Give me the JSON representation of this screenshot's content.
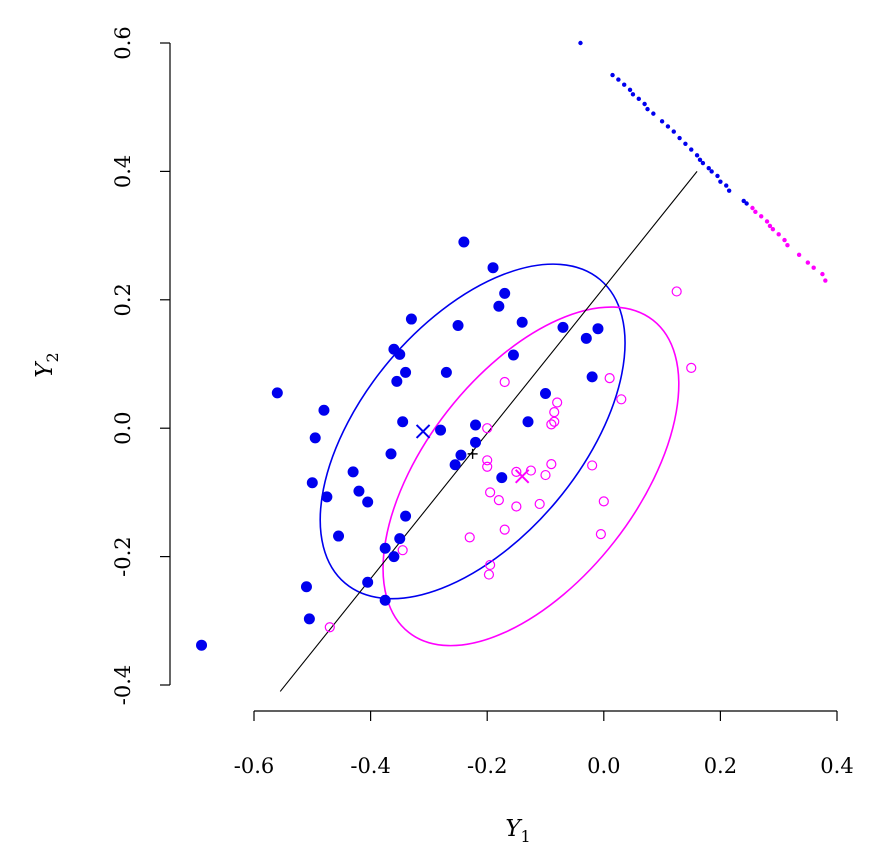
{
  "chart_data": {
    "type": "scatter",
    "xlabel": "Y",
    "xlabel_sub": "1",
    "ylabel": "Y",
    "ylabel_sub": "2",
    "xlim": [
      -0.77,
      0.45
    ],
    "ylim": [
      -0.45,
      0.62
    ],
    "x_ticks": [
      {
        "value": -0.6,
        "label": "-0.6"
      },
      {
        "value": -0.4,
        "label": "-0.4"
      },
      {
        "value": -0.2,
        "label": "-0.2"
      },
      {
        "value": 0.0,
        "label": "0.0"
      },
      {
        "value": 0.2,
        "label": "0.2"
      },
      {
        "value": 0.4,
        "label": "0.4"
      }
    ],
    "y_ticks": [
      {
        "value": -0.4,
        "label": "-0.4"
      },
      {
        "value": -0.2,
        "label": "-0.2"
      },
      {
        "value": 0.0,
        "label": "0.0"
      },
      {
        "value": 0.2,
        "label": "0.2"
      },
      {
        "value": 0.4,
        "label": "0.4"
      },
      {
        "value": 0.6,
        "label": "0.6"
      }
    ],
    "colors": {
      "group1": "#0000ee",
      "group2": "#ff00ff",
      "line": "#000000"
    },
    "series": [
      {
        "marker": "filled-circle",
        "color": "#0000ee",
        "points": [
          [
            -0.24,
            0.29
          ],
          [
            -0.19,
            0.25
          ],
          [
            -0.17,
            0.21
          ],
          [
            -0.18,
            0.19
          ],
          [
            -0.33,
            0.17
          ],
          [
            -0.25,
            0.16
          ],
          [
            -0.14,
            0.165
          ],
          [
            -0.07,
            0.157
          ],
          [
            -0.01,
            0.155
          ],
          [
            -0.03,
            0.14
          ],
          [
            -0.36,
            0.123
          ],
          [
            -0.35,
            0.115
          ],
          [
            -0.155,
            0.114
          ],
          [
            -0.34,
            0.087
          ],
          [
            -0.27,
            0.087
          ],
          [
            -0.355,
            0.073
          ],
          [
            -0.02,
            0.08
          ],
          [
            -0.56,
            0.055
          ],
          [
            -0.1,
            0.054
          ],
          [
            -0.48,
            0.028
          ],
          [
            -0.13,
            0.01
          ],
          [
            -0.345,
            0.01
          ],
          [
            -0.22,
            0.005
          ],
          [
            -0.28,
            -0.003
          ],
          [
            -0.495,
            -0.015
          ],
          [
            -0.22,
            -0.022
          ],
          [
            -0.365,
            -0.04
          ],
          [
            -0.245,
            -0.042
          ],
          [
            -0.255,
            -0.057
          ],
          [
            -0.43,
            -0.068
          ],
          [
            -0.175,
            -0.077
          ],
          [
            -0.5,
            -0.085
          ],
          [
            -0.42,
            -0.098
          ],
          [
            -0.475,
            -0.107
          ],
          [
            -0.405,
            -0.115
          ],
          [
            -0.34,
            -0.137
          ],
          [
            -0.455,
            -0.168
          ],
          [
            -0.35,
            -0.172
          ],
          [
            -0.375,
            -0.187
          ],
          [
            -0.36,
            -0.2
          ],
          [
            -0.405,
            -0.24
          ],
          [
            -0.51,
            -0.247
          ],
          [
            -0.375,
            -0.268
          ],
          [
            -0.505,
            -0.297
          ],
          [
            -0.69,
            -0.338
          ]
        ]
      },
      {
        "marker": "open-circle",
        "color": "#ff00ff",
        "points": [
          [
            0.125,
            0.213
          ],
          [
            0.15,
            0.094
          ],
          [
            -0.17,
            0.072
          ],
          [
            0.01,
            0.078
          ],
          [
            0.03,
            0.045
          ],
          [
            -0.08,
            0.04
          ],
          [
            -0.085,
            0.025
          ],
          [
            -0.085,
            0.01
          ],
          [
            -0.09,
            0.006
          ],
          [
            -0.2,
            0.0
          ],
          [
            -0.2,
            -0.05
          ],
          [
            -0.2,
            -0.06
          ],
          [
            -0.09,
            -0.056
          ],
          [
            -0.02,
            -0.058
          ],
          [
            -0.15,
            -0.068
          ],
          [
            -0.125,
            -0.066
          ],
          [
            -0.1,
            -0.073
          ],
          [
            -0.15,
            -0.122
          ],
          [
            -0.195,
            -0.1
          ],
          [
            -0.18,
            -0.112
          ],
          [
            -0.11,
            -0.118
          ],
          [
            0.0,
            -0.114
          ],
          [
            -0.17,
            -0.158
          ],
          [
            -0.23,
            -0.17
          ],
          [
            -0.005,
            -0.165
          ],
          [
            -0.345,
            -0.19
          ],
          [
            -0.195,
            -0.213
          ],
          [
            -0.197,
            -0.228
          ],
          [
            -0.47,
            -0.31
          ]
        ]
      },
      {
        "marker": "small-dot",
        "color": "#0000ee",
        "points": [
          [
            -0.04,
            0.6
          ],
          [
            0.015,
            0.55
          ],
          [
            0.025,
            0.543
          ],
          [
            0.035,
            0.535
          ],
          [
            0.045,
            0.527
          ],
          [
            0.05,
            0.52
          ],
          [
            0.06,
            0.513
          ],
          [
            0.07,
            0.505
          ],
          [
            0.075,
            0.497
          ],
          [
            0.085,
            0.49
          ],
          [
            0.1,
            0.478
          ],
          [
            0.11,
            0.47
          ],
          [
            0.12,
            0.462
          ],
          [
            0.13,
            0.452
          ],
          [
            0.14,
            0.443
          ],
          [
            0.15,
            0.434
          ],
          [
            0.16,
            0.425
          ],
          [
            0.165,
            0.418
          ],
          [
            0.17,
            0.413
          ],
          [
            0.18,
            0.405
          ],
          [
            0.185,
            0.4
          ],
          [
            0.195,
            0.393
          ],
          [
            0.2,
            0.384
          ],
          [
            0.21,
            0.378
          ],
          [
            0.215,
            0.37
          ],
          [
            0.24,
            0.354
          ],
          [
            0.245,
            0.35
          ]
        ]
      },
      {
        "marker": "small-dot",
        "color": "#ff00ff",
        "points": [
          [
            0.255,
            0.343
          ],
          [
            0.26,
            0.337
          ],
          [
            0.27,
            0.33
          ],
          [
            0.28,
            0.322
          ],
          [
            0.285,
            0.315
          ],
          [
            0.29,
            0.31
          ],
          [
            0.3,
            0.302
          ],
          [
            0.31,
            0.293
          ],
          [
            0.315,
            0.285
          ],
          [
            0.335,
            0.27
          ],
          [
            0.35,
            0.258
          ],
          [
            0.36,
            0.25
          ],
          [
            0.375,
            0.24
          ],
          [
            0.38,
            0.23
          ]
        ]
      }
    ],
    "centroids": [
      {
        "x": -0.31,
        "y": -0.005,
        "color": "#0000ee",
        "marker": "x"
      },
      {
        "x": -0.14,
        "y": -0.075,
        "color": "#ff00ff",
        "marker": "x"
      },
      {
        "x": -0.225,
        "y": -0.04,
        "color": "#000000",
        "marker": "plus"
      }
    ],
    "line": {
      "x1": -0.555,
      "y1": -0.41,
      "x2": 0.16,
      "y2": 0.4,
      "color": "#000000"
    },
    "ellipses": [
      {
        "color": "#0000ee",
        "cx": -0.225,
        "cy": -0.005,
        "rx": 0.34,
        "ry": 0.17,
        "angle_deg": 50
      },
      {
        "color": "#ff00ff",
        "cx": -0.125,
        "cy": -0.075,
        "rx": 0.34,
        "ry": 0.165,
        "angle_deg": 52
      }
    ]
  }
}
